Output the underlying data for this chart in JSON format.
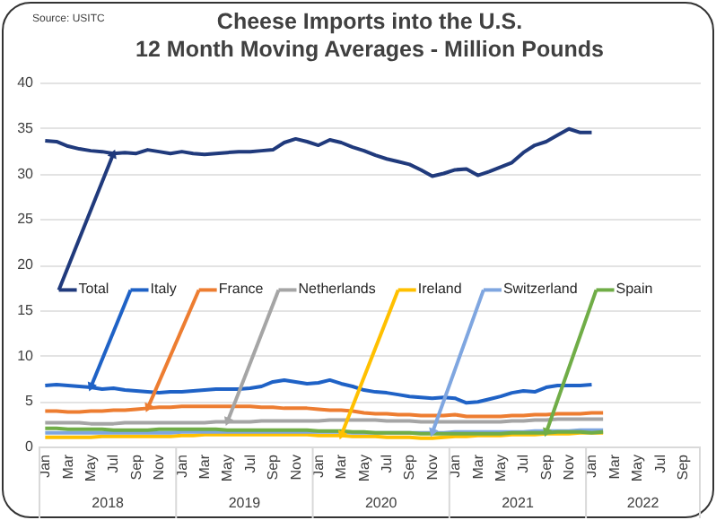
{
  "chart_data": {
    "type": "line",
    "title": "Cheese Imports into the U.S.",
    "subtitle": "12 Month Moving Averages - Million Pounds",
    "annotations": [
      "Source: USITC",
      "2018",
      "2019",
      "2020",
      "2021",
      "2022"
    ],
    "categories": [
      "Jan",
      null,
      "Mar",
      null,
      "May",
      null,
      "Jul",
      null,
      "Sep",
      null,
      "Nov",
      null,
      "Jan",
      null,
      "Mar",
      null,
      "May",
      null,
      "Jul",
      null,
      "Sep",
      null,
      "Nov",
      null,
      "Jan",
      null,
      "Mar",
      null,
      "May",
      null,
      "Jul",
      null,
      "Sep",
      null,
      "Nov",
      null,
      "Jan",
      null,
      "Mar",
      null,
      "May",
      null,
      "Jul",
      null,
      "Sep",
      null,
      "Nov",
      null,
      "Jan",
      null,
      "Mar",
      null,
      "May",
      null,
      "Jul",
      null,
      "Sep",
      null
    ],
    "series": [
      {
        "name": "Total",
        "color": "#203a7c",
        "values": [
          33.6,
          33.5,
          33.0,
          32.7,
          32.5,
          32.4,
          32.2,
          32.3,
          32.2,
          32.6,
          32.4,
          32.2,
          32.4,
          32.2,
          32.1,
          32.2,
          32.3,
          32.4,
          32.4,
          32.5,
          32.6,
          33.4,
          33.8,
          33.5,
          33.1,
          33.7,
          33.4,
          32.9,
          32.5,
          32.0,
          31.6,
          31.3,
          31.0,
          30.4,
          29.7,
          30.0,
          30.4,
          30.5,
          29.8,
          30.2,
          30.7,
          31.2,
          32.3,
          33.1,
          33.5,
          34.2,
          34.9,
          34.5,
          34.5,
          null,
          null,
          null,
          null,
          null,
          null,
          null,
          null,
          null
        ]
      },
      {
        "name": "Italy",
        "color": "#1f62c6",
        "values": [
          6.7,
          6.8,
          6.7,
          6.6,
          6.5,
          6.3,
          6.4,
          6.2,
          6.1,
          6.0,
          5.9,
          6.0,
          6.0,
          6.1,
          6.2,
          6.3,
          6.3,
          6.3,
          6.4,
          6.6,
          7.1,
          7.3,
          7.1,
          6.9,
          7.0,
          7.3,
          6.9,
          6.6,
          6.2,
          6.0,
          5.9,
          5.7,
          5.5,
          5.4,
          5.3,
          5.4,
          5.3,
          4.8,
          4.9,
          5.2,
          5.5,
          5.9,
          6.1,
          6.0,
          6.5,
          6.7,
          6.7,
          6.7,
          6.8,
          null,
          null,
          null,
          null,
          null,
          null,
          null,
          null,
          null
        ]
      },
      {
        "name": "France",
        "color": "#ed7d31",
        "values": [
          3.9,
          3.9,
          3.8,
          3.8,
          3.9,
          3.9,
          4.0,
          4.0,
          4.1,
          4.2,
          4.3,
          4.3,
          4.4,
          4.4,
          4.4,
          4.4,
          4.4,
          4.4,
          4.4,
          4.3,
          4.3,
          4.2,
          4.2,
          4.2,
          4.1,
          4.0,
          4.0,
          3.9,
          3.7,
          3.6,
          3.6,
          3.5,
          3.5,
          3.4,
          3.4,
          3.4,
          3.5,
          3.3,
          3.3,
          3.3,
          3.3,
          3.4,
          3.4,
          3.5,
          3.5,
          3.6,
          3.6,
          3.6,
          3.7,
          3.7,
          null,
          null,
          null,
          null,
          null,
          null,
          null,
          null
        ]
      },
      {
        "name": "Netherlands",
        "color": "#a5a5a5",
        "values": [
          2.6,
          2.6,
          2.6,
          2.6,
          2.5,
          2.5,
          2.5,
          2.6,
          2.6,
          2.6,
          2.6,
          2.6,
          2.6,
          2.6,
          2.6,
          2.7,
          2.7,
          2.7,
          2.7,
          2.8,
          2.8,
          2.8,
          2.8,
          2.8,
          2.8,
          2.9,
          2.9,
          2.9,
          2.9,
          2.9,
          2.8,
          2.8,
          2.8,
          2.7,
          2.7,
          2.7,
          2.7,
          2.7,
          2.7,
          2.7,
          2.7,
          2.8,
          2.8,
          2.9,
          2.9,
          3.0,
          3.0,
          3.0,
          3.0,
          3.0,
          null,
          null,
          null,
          null,
          null,
          null,
          null,
          null
        ]
      },
      {
        "name": "Ireland",
        "color": "#ffc000",
        "values": [
          1.0,
          1.0,
          1.0,
          1.0,
          1.0,
          1.1,
          1.1,
          1.1,
          1.1,
          1.1,
          1.1,
          1.1,
          1.2,
          1.2,
          1.3,
          1.3,
          1.3,
          1.3,
          1.3,
          1.3,
          1.3,
          1.3,
          1.3,
          1.3,
          1.2,
          1.2,
          1.2,
          1.1,
          1.1,
          1.1,
          1.0,
          1.0,
          1.0,
          0.9,
          0.9,
          1.0,
          1.1,
          1.1,
          1.2,
          1.2,
          1.2,
          1.3,
          1.3,
          1.3,
          1.4,
          1.4,
          1.4,
          1.5,
          1.5,
          1.5,
          null,
          null,
          null,
          null,
          null,
          null,
          null,
          null
        ]
      },
      {
        "name": "Switzerland",
        "color": "#7fa6e0",
        "values": [
          1.5,
          1.5,
          1.5,
          1.5,
          1.5,
          1.5,
          1.5,
          1.5,
          1.5,
          1.5,
          1.5,
          1.5,
          1.6,
          1.6,
          1.6,
          1.6,
          1.6,
          1.6,
          1.6,
          1.6,
          1.6,
          1.6,
          1.6,
          1.6,
          1.6,
          1.6,
          1.6,
          1.5,
          1.5,
          1.5,
          1.5,
          1.5,
          1.5,
          1.5,
          1.5,
          1.5,
          1.6,
          1.6,
          1.6,
          1.6,
          1.6,
          1.6,
          1.6,
          1.7,
          1.7,
          1.7,
          1.7,
          1.8,
          1.8,
          1.8,
          null,
          null,
          null,
          null,
          null,
          null,
          null,
          null
        ]
      },
      {
        "name": "Spain",
        "color": "#70ad47",
        "values": [
          2.0,
          2.0,
          1.9,
          1.9,
          1.9,
          1.9,
          1.8,
          1.8,
          1.8,
          1.8,
          1.9,
          1.9,
          1.9,
          1.9,
          1.9,
          1.9,
          1.8,
          1.8,
          1.8,
          1.8,
          1.8,
          1.8,
          1.8,
          1.8,
          1.7,
          1.7,
          1.7,
          1.6,
          1.6,
          1.5,
          1.5,
          1.5,
          1.5,
          1.4,
          1.4,
          1.4,
          1.4,
          1.4,
          1.4,
          1.4,
          1.4,
          1.5,
          1.5,
          1.5,
          1.5,
          1.6,
          1.6,
          1.6,
          1.5,
          1.6,
          null,
          null,
          null,
          null,
          null,
          null,
          null,
          null
        ]
      }
    ],
    "ylim": [
      0,
      40
    ],
    "yticks": [
      0,
      5,
      10,
      15,
      20,
      25,
      30,
      35,
      40
    ],
    "grid": "y",
    "legend": "center"
  }
}
